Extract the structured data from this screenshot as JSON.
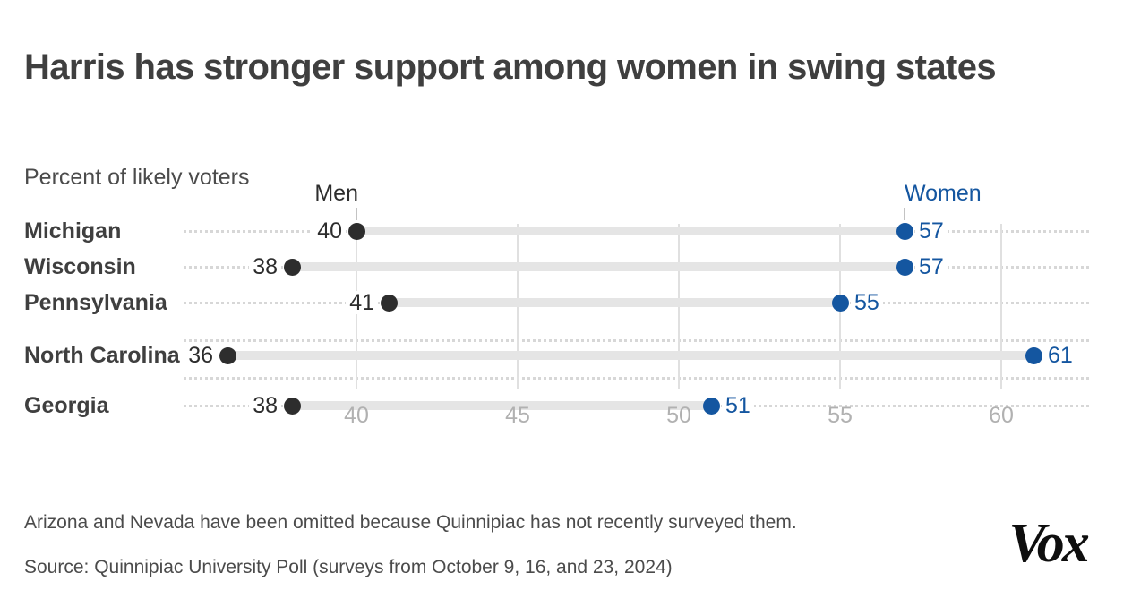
{
  "header": {
    "title": "Harris has stronger support among women in swing states",
    "subtitle": "Percent of likely voters"
  },
  "chart_data": {
    "type": "dumbbell",
    "categories": [
      "Michigan",
      "Wisconsin",
      "Pennsylvania",
      "North Carolina",
      "Georgia"
    ],
    "series": [
      {
        "name": "Men",
        "values": [
          40,
          38,
          41,
          36,
          38
        ]
      },
      {
        "name": "Women",
        "values": [
          57,
          57,
          55,
          61,
          51
        ]
      }
    ],
    "xticks": [
      40,
      45,
      50,
      55,
      60
    ],
    "xlim": [
      34.5,
      62.8
    ],
    "grid": true,
    "legend_position": "above first row, Men over men dot and Women over women dot"
  },
  "footer": {
    "note": "Arizona and Nevada have been omitted because Quinnipiac has not recently surveyed them.",
    "source": "Source: Quinnipiac University Poll (surveys from October 9, 16, and 23, 2024)",
    "logo_text": "Vox"
  },
  "colors": {
    "men": "#2d2d2d",
    "women": "#1456a0",
    "bar": "#e5e5e5",
    "leader": "#d7d7d7",
    "gridline": "#e0e0e0",
    "legend_tick": "#c3c3c3",
    "axis_text": "#b1b1b1",
    "title_text": "#3f3f3f",
    "body_text": "#4b4b4b",
    "logo": "#0e0e0e"
  }
}
